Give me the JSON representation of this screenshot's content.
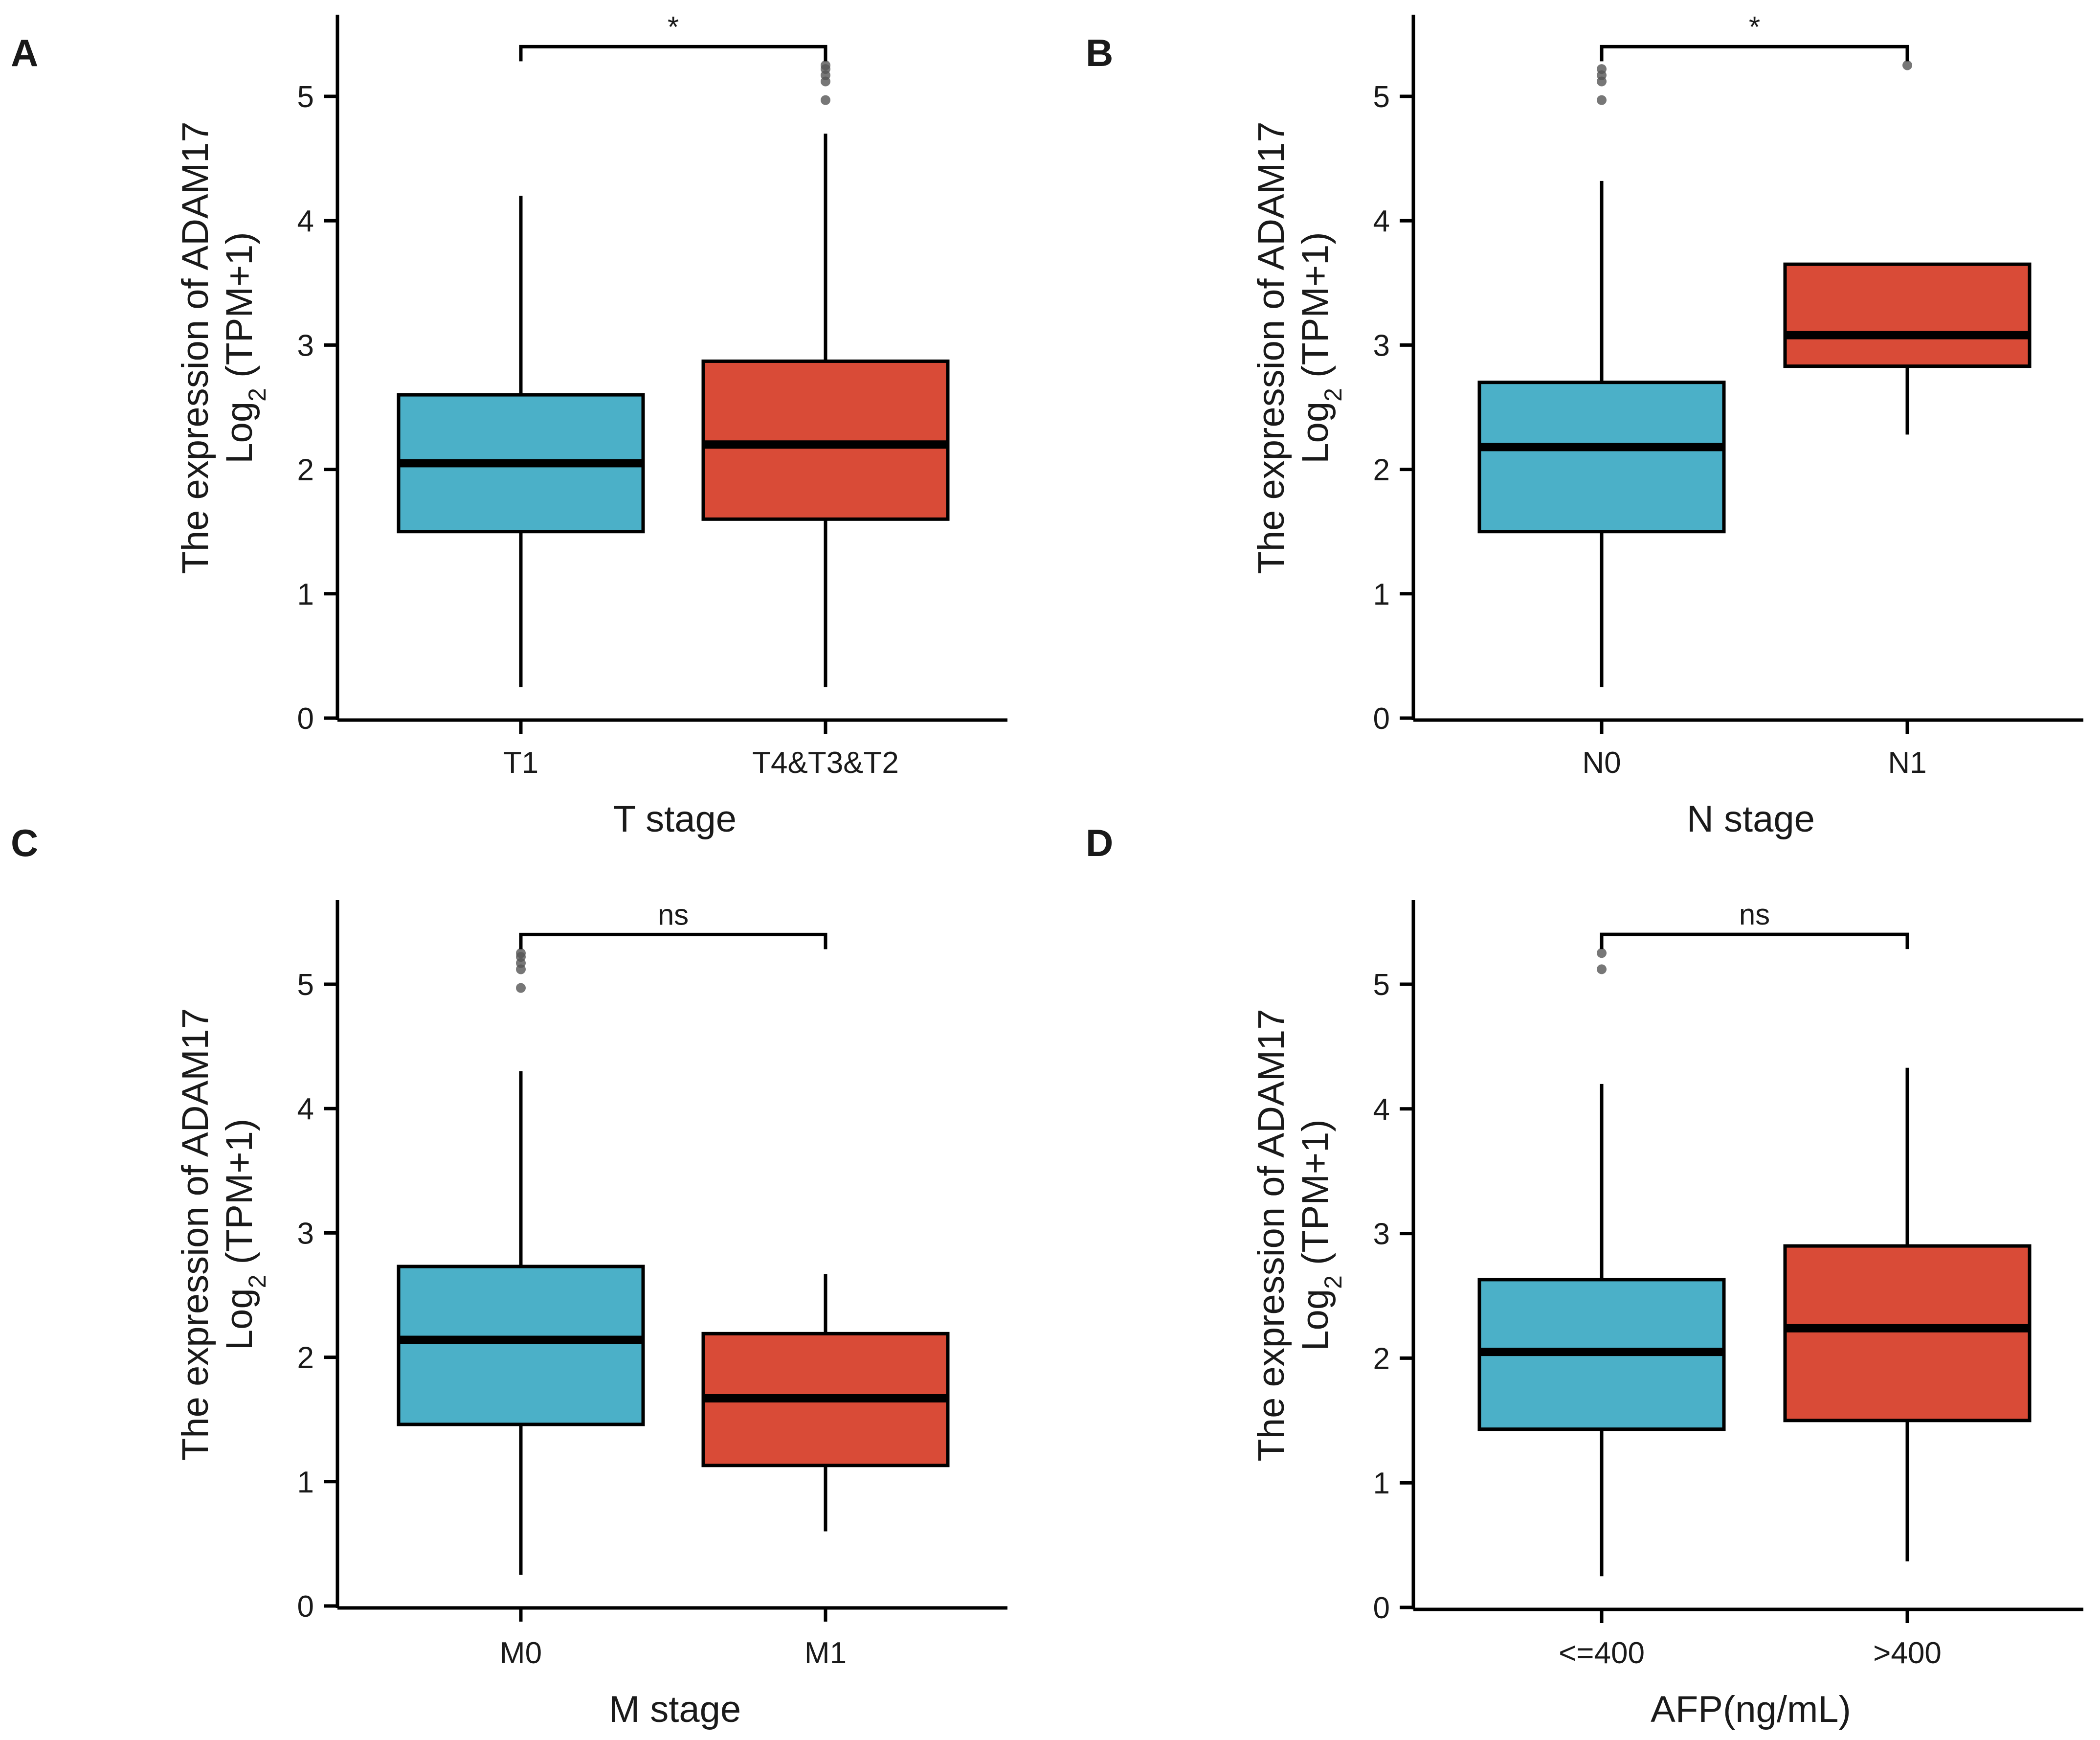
{
  "figure": {
    "colors": {
      "group1": "#4BB0C8",
      "group2": "#D94B37",
      "outlier": "#555555",
      "line": "#000000"
    }
  },
  "chart_data": [
    {
      "type": "box",
      "panel": "A",
      "title": "",
      "xlabel": "T stage",
      "ylabel_line1": "The expression of ADAM17",
      "ylabel_line2_pre": "Log",
      "ylabel_line2_sub": "2",
      "ylabel_line2_post": " (TPM+1)",
      "ylim": [
        0,
        5.6
      ],
      "yticks": [
        "0",
        "1",
        "2",
        "3",
        "4",
        "5"
      ],
      "categories": [
        "T1",
        "T4&T3&T2"
      ],
      "significance": "*",
      "boxes": [
        {
          "name": "T1",
          "whisker_low": 0.25,
          "q1": 1.5,
          "median": 2.05,
          "q3": 2.6,
          "whisker_high": 4.2,
          "outliers": []
        },
        {
          "name": "T4&T3&T2",
          "whisker_low": 0.25,
          "q1": 1.6,
          "median": 2.2,
          "q3": 2.87,
          "whisker_high": 4.7,
          "outliers": [
            4.97,
            5.12,
            5.17,
            5.22,
            5.25
          ]
        }
      ]
    },
    {
      "type": "box",
      "panel": "B",
      "title": "",
      "xlabel": "N stage",
      "ylabel_line1": "The expression of ADAM17",
      "ylabel_line2_pre": "Log",
      "ylabel_line2_sub": "2",
      "ylabel_line2_post": " (TPM+1)",
      "ylim": [
        0,
        5.6
      ],
      "yticks": [
        "0",
        "1",
        "2",
        "3",
        "4",
        "5"
      ],
      "categories": [
        "N0",
        "N1"
      ],
      "significance": "*",
      "boxes": [
        {
          "name": "N0",
          "whisker_low": 0.25,
          "q1": 1.5,
          "median": 2.18,
          "q3": 2.7,
          "whisker_high": 4.32,
          "outliers": [
            4.97,
            5.12,
            5.17,
            5.22
          ]
        },
        {
          "name": "N1",
          "whisker_low": 2.28,
          "q1": 2.83,
          "median": 3.08,
          "q3": 3.65,
          "whisker_high": 3.65,
          "outliers": [
            5.25
          ]
        }
      ]
    },
    {
      "type": "box",
      "panel": "C",
      "title": "",
      "xlabel": "M stage",
      "ylabel_line1": "The expression of ADAM17",
      "ylabel_line2_pre": "Log",
      "ylabel_line2_sub": "2",
      "ylabel_line2_post": " (TPM+1)",
      "ylim": [
        0,
        5.6
      ],
      "yticks": [
        "0",
        "1",
        "2",
        "3",
        "4",
        "5"
      ],
      "categories": [
        "M0",
        "M1"
      ],
      "significance": "ns",
      "boxes": [
        {
          "name": "M0",
          "whisker_low": 0.25,
          "q1": 1.46,
          "median": 2.14,
          "q3": 2.73,
          "whisker_high": 4.3,
          "outliers": [
            4.97,
            5.12,
            5.17,
            5.22,
            5.25
          ]
        },
        {
          "name": "M1",
          "whisker_low": 0.6,
          "q1": 1.13,
          "median": 1.67,
          "q3": 2.19,
          "whisker_high": 2.67,
          "outliers": []
        }
      ]
    },
    {
      "type": "box",
      "panel": "D",
      "title": "",
      "xlabel": "AFP(ng/mL)",
      "ylabel_line1": "The expression of ADAM17",
      "ylabel_line2_pre": "Log",
      "ylabel_line2_sub": "2",
      "ylabel_line2_post": " (TPM+1)",
      "ylim": [
        0,
        5.6
      ],
      "yticks": [
        "0",
        "1",
        "2",
        "3",
        "4",
        "5"
      ],
      "categories": [
        "<=400",
        ">400"
      ],
      "significance": "ns",
      "boxes": [
        {
          "name": "<=400",
          "whisker_low": 0.25,
          "q1": 1.43,
          "median": 2.05,
          "q3": 2.63,
          "whisker_high": 4.2,
          "outliers": [
            5.12,
            5.25
          ]
        },
        {
          "name": ">400",
          "whisker_low": 0.37,
          "q1": 1.5,
          "median": 2.24,
          "q3": 2.9,
          "whisker_high": 4.33,
          "outliers": []
        }
      ]
    }
  ]
}
